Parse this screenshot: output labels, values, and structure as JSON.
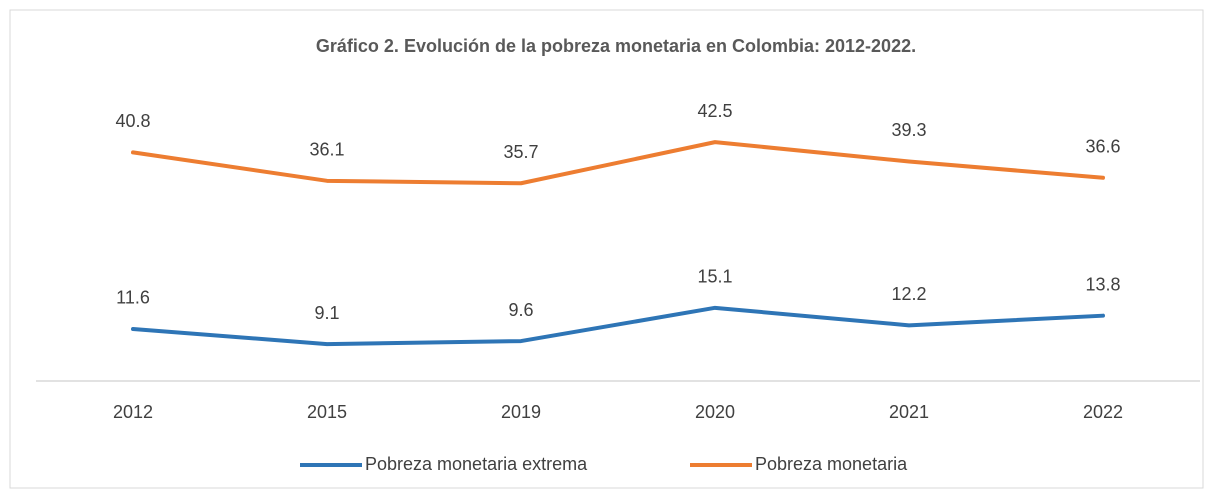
{
  "chart_data": {
    "type": "line",
    "title": "Gráfico 2. Evolución de la pobreza monetaria en Colombia: 2012-2022.",
    "categories": [
      "2012",
      "2015",
      "2019",
      "2020",
      "2021",
      "2022"
    ],
    "series": [
      {
        "name": "Pobreza monetaria extrema",
        "color": "#2e75b6",
        "values": [
          11.6,
          9.1,
          9.6,
          15.1,
          12.2,
          13.8
        ]
      },
      {
        "name": "Pobreza monetaria",
        "color": "#ed7d31",
        "values": [
          40.8,
          36.1,
          35.7,
          42.5,
          39.3,
          36.6
        ]
      }
    ],
    "ylim": [
      3,
      45
    ]
  }
}
